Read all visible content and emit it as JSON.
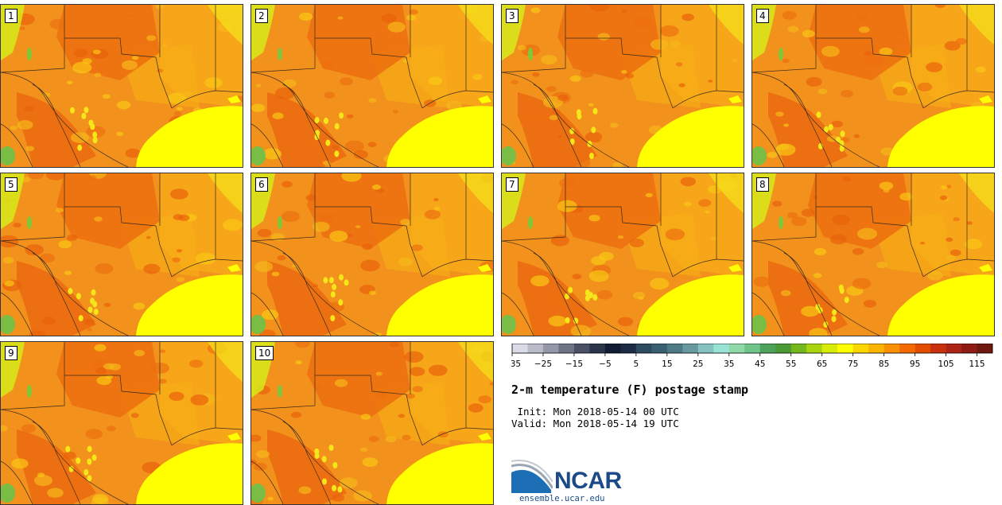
{
  "panels": [
    "1",
    "2",
    "3",
    "4",
    "5",
    "6",
    "7",
    "8",
    "9",
    "10"
  ],
  "colorbar": {
    "colors": [
      "#d9dbe6",
      "#b9bcc8",
      "#9497a7",
      "#6e7385",
      "#4a5167",
      "#2b3549",
      "#101c33",
      "#1c2c45",
      "#2e4a5e",
      "#3a5f70",
      "#4e7a86",
      "#6899a0",
      "#86c2c2",
      "#98e3d3",
      "#8fd8a8",
      "#6fc48a",
      "#4fa25c",
      "#4c9a36",
      "#74b81e",
      "#a8d410",
      "#d8ec0a",
      "#ffff00",
      "#fcd600",
      "#fbb400",
      "#f99000",
      "#f26a00",
      "#e34d00",
      "#c8300e",
      "#ad2416",
      "#8e1c14",
      "#6e1810"
    ],
    "tick_labels": [
      "−35",
      "−25",
      "−15",
      "−5",
      "5",
      "15",
      "25",
      "35",
      "45",
      "55",
      "65",
      "75",
      "85",
      "95",
      "105",
      "115"
    ]
  },
  "title": "2-m temperature (F) postage stamp",
  "init": " Init: Mon 2018-05-14 00 UTC",
  "valid": "Valid: Mon 2018-05-14 19 UTC",
  "logo": {
    "name": "NCAR",
    "url": "ensemble.ucar.edu"
  }
}
